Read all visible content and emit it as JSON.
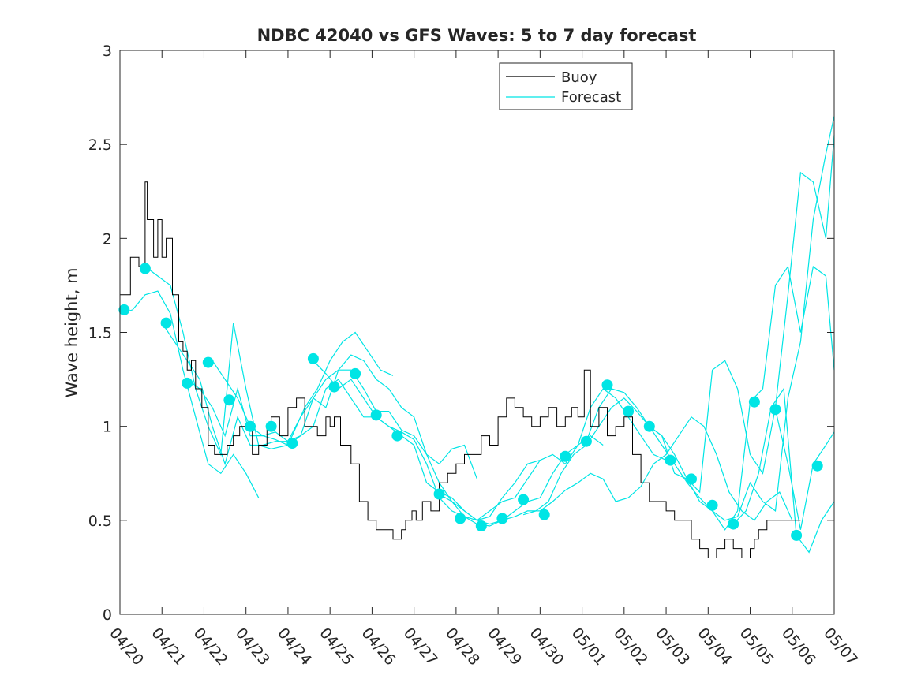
{
  "chart_data": {
    "type": "line",
    "title": "NDBC 42040 vs GFS Waves: 5 to 7 day forecast",
    "xlabel": "",
    "ylabel": "Wave height, m",
    "xlim": [
      0,
      17
    ],
    "ylim": [
      0,
      3
    ],
    "xticks": [
      "04/20",
      "04/21",
      "04/22",
      "04/23",
      "04/24",
      "04/25",
      "04/26",
      "04/27",
      "04/28",
      "04/29",
      "04/30",
      "05/01",
      "05/02",
      "05/03",
      "05/04",
      "05/05",
      "05/06",
      "05/07"
    ],
    "yticks": [
      "0",
      "0.5",
      "1",
      "1.5",
      "2",
      "2.5",
      "3"
    ],
    "grid": false,
    "legend_position": "top-center",
    "colors": {
      "buoy": "#000000",
      "forecast": "#00e5e5"
    },
    "series": [
      {
        "name": "Buoy",
        "style": "stair-line",
        "x": [
          0.0,
          0.25,
          0.45,
          0.6,
          0.65,
          0.8,
          0.9,
          1.0,
          1.1,
          1.25,
          1.4,
          1.5,
          1.6,
          1.7,
          1.8,
          1.95,
          2.1,
          2.25,
          2.4,
          2.55,
          2.7,
          2.85,
          3.0,
          3.15,
          3.3,
          3.5,
          3.6,
          3.8,
          4.0,
          4.2,
          4.4,
          4.55,
          4.7,
          4.9,
          5.0,
          5.1,
          5.25,
          5.5,
          5.7,
          5.9,
          6.1,
          6.3,
          6.5,
          6.7,
          6.8,
          6.95,
          7.05,
          7.2,
          7.4,
          7.6,
          7.8,
          8.0,
          8.2,
          8.4,
          8.6,
          8.8,
          9.0,
          9.2,
          9.4,
          9.6,
          9.8,
          10.0,
          10.2,
          10.4,
          10.6,
          10.75,
          10.9,
          11.05,
          11.2,
          11.4,
          11.6,
          11.8,
          12.0,
          12.2,
          12.4,
          12.6,
          12.8,
          13.0,
          13.2,
          13.4,
          13.6,
          13.8,
          14.0,
          14.2,
          14.4,
          14.6,
          14.8,
          15.0,
          15.1,
          15.2,
          15.4,
          15.6,
          15.75,
          15.9,
          16.05,
          16.2
        ],
        "y": [
          1.7,
          1.9,
          1.85,
          2.3,
          2.1,
          1.9,
          2.1,
          1.9,
          2.0,
          1.7,
          1.45,
          1.4,
          1.3,
          1.35,
          1.2,
          1.1,
          0.9,
          0.85,
          0.85,
          0.9,
          0.95,
          1.0,
          1.0,
          0.85,
          0.9,
          1.0,
          1.05,
          0.95,
          1.1,
          1.15,
          1.0,
          1.0,
          0.95,
          1.05,
          1.0,
          1.05,
          0.9,
          0.8,
          0.6,
          0.5,
          0.45,
          0.45,
          0.4,
          0.45,
          0.5,
          0.55,
          0.5,
          0.6,
          0.55,
          0.7,
          0.75,
          0.8,
          0.85,
          0.85,
          0.95,
          0.9,
          1.05,
          1.15,
          1.1,
          1.05,
          1.0,
          1.05,
          1.1,
          1.0,
          1.05,
          1.1,
          1.05,
          1.3,
          1.0,
          1.1,
          0.95,
          1.0,
          1.05,
          0.85,
          0.7,
          0.6,
          0.6,
          0.55,
          0.5,
          0.5,
          0.4,
          0.35,
          0.3,
          0.35,
          0.4,
          0.35,
          0.3,
          0.35,
          0.4,
          0.45,
          0.5,
          0.5,
          0.5,
          0.5,
          0.5,
          0.5
        ]
      },
      {
        "name": "Forecast",
        "runs": [
          {
            "x": [
              0.0,
              0.3,
              0.6,
              0.9,
              1.2,
              1.5,
              1.8,
              2.1,
              2.4,
              2.7,
              3.0,
              3.3
            ],
            "y": [
              1.6,
              1.62,
              1.7,
              1.72,
              1.6,
              1.3,
              1.05,
              0.8,
              0.75,
              0.85,
              0.75,
              0.62
            ]
          },
          {
            "x": [
              0.6,
              0.9,
              1.2,
              1.5,
              1.8,
              2.1,
              2.4,
              2.7,
              3.0,
              3.3,
              3.6,
              4.0,
              4.4,
              4.7,
              5.0,
              5.3,
              5.6,
              5.9,
              6.2,
              6.5
            ],
            "y": [
              1.85,
              1.8,
              1.75,
              1.5,
              1.2,
              1.0,
              0.85,
              1.55,
              1.2,
              0.9,
              0.88,
              0.9,
              1.1,
              1.2,
              1.35,
              1.45,
              1.5,
              1.4,
              1.3,
              1.27
            ]
          },
          {
            "x": [
              1.0,
              1.3,
              1.6,
              1.9,
              2.2,
              2.5,
              2.8,
              3.1,
              3.4,
              3.7,
              4.0,
              4.3,
              4.6,
              4.9,
              5.2,
              5.5,
              5.8,
              6.1,
              6.4,
              6.7,
              7.0,
              7.3,
              7.6,
              7.9,
              8.2,
              8.5
            ],
            "y": [
              1.55,
              1.45,
              1.35,
              1.25,
              1.0,
              0.8,
              1.05,
              0.9,
              0.9,
              0.92,
              0.92,
              1.05,
              1.15,
              1.25,
              1.3,
              1.38,
              1.35,
              1.25,
              1.2,
              1.1,
              1.05,
              0.85,
              0.8,
              0.88,
              0.9,
              0.72
            ]
          },
          {
            "x": [
              1.6,
              1.9,
              2.2,
              2.5,
              2.8,
              3.1,
              3.4,
              3.7,
              4.0,
              4.3,
              4.6,
              4.9,
              5.2,
              5.5,
              5.8,
              6.1,
              6.4,
              6.7,
              7.0,
              7.3,
              7.6,
              7.9,
              8.2,
              8.5,
              8.8,
              9.1,
              9.4,
              9.7,
              10.0
            ],
            "y": [
              1.25,
              1.2,
              1.1,
              0.95,
              1.2,
              0.95,
              0.95,
              0.93,
              0.9,
              0.95,
              1.15,
              1.1,
              1.3,
              1.3,
              1.2,
              1.08,
              1.08,
              0.98,
              0.95,
              0.85,
              0.7,
              0.6,
              0.55,
              0.5,
              0.52,
              0.62,
              0.7,
              0.8,
              0.82
            ]
          },
          {
            "x": [
              2.2,
              2.5,
              2.8,
              3.1,
              3.4,
              3.7,
              4.0,
              4.3,
              4.6,
              4.9,
              5.2,
              5.5,
              5.8,
              6.1,
              6.4,
              6.7,
              7.0,
              7.3,
              7.6,
              7.9,
              8.2,
              8.5,
              8.8,
              9.1,
              9.4,
              9.7,
              10.0,
              10.3,
              10.6,
              10.9,
              11.2,
              11.5
            ],
            "y": [
              1.35,
              1.25,
              1.15,
              1.0,
              0.95,
              0.97,
              0.92,
              0.95,
              1.0,
              1.2,
              1.25,
              1.15,
              1.05,
              1.05,
              1.0,
              0.97,
              0.93,
              0.8,
              0.62,
              0.55,
              0.52,
              0.5,
              0.55,
              0.6,
              0.62,
              0.72,
              0.82,
              0.85,
              0.8,
              0.9,
              0.95,
              0.9
            ]
          },
          {
            "x": [
              4.6,
              4.9,
              5.2,
              5.5,
              5.8,
              6.1,
              6.4,
              6.7,
              7.0,
              7.3,
              7.6,
              7.9,
              8.2,
              8.5,
              8.8,
              9.1,
              9.4,
              9.7,
              10.0,
              10.3,
              10.6,
              10.9,
              11.2,
              11.5,
              11.8,
              12.1,
              12.4,
              12.7,
              13.0
            ],
            "y": [
              1.35,
              1.28,
              1.2,
              1.25,
              1.15,
              1.05,
              1.0,
              0.95,
              0.9,
              0.7,
              0.65,
              0.62,
              0.55,
              0.5,
              0.48,
              0.5,
              0.55,
              0.6,
              0.62,
              0.75,
              0.85,
              0.9,
              1.1,
              1.2,
              1.15,
              1.05,
              0.95,
              0.85,
              0.82
            ]
          },
          {
            "x": [
              7.6,
              7.9,
              8.2,
              8.5,
              8.8,
              9.1,
              9.4,
              9.7,
              10.0,
              10.3,
              10.6,
              10.9,
              11.2,
              11.5,
              11.8,
              12.1,
              12.4,
              12.7,
              13.0,
              13.3,
              13.6,
              13.9,
              14.2,
              14.5,
              14.8,
              15.1,
              15.4,
              15.7,
              16.0
            ],
            "y": [
              0.64,
              0.6,
              0.52,
              0.48,
              0.47,
              0.5,
              0.52,
              0.55,
              0.55,
              0.6,
              0.66,
              0.7,
              0.75,
              0.72,
              0.6,
              0.62,
              0.68,
              0.8,
              0.85,
              0.95,
              1.05,
              1.0,
              0.85,
              0.65,
              0.55,
              0.5,
              0.6,
              0.65,
              0.5
            ]
          },
          {
            "x": [
              9.6,
              9.9,
              10.2,
              10.5,
              10.8,
              11.1,
              11.4,
              11.7,
              12.0,
              12.3,
              12.6,
              12.9,
              13.2,
              13.5,
              13.8,
              14.1,
              14.4,
              14.7,
              15.0,
              15.3,
              15.6,
              15.9,
              16.2,
              16.5,
              16.8,
              17.0
            ],
            "y": [
              0.53,
              0.55,
              0.6,
              0.75,
              0.85,
              0.9,
              1.0,
              1.1,
              1.15,
              1.08,
              1.0,
              0.95,
              0.75,
              0.72,
              0.6,
              0.55,
              0.5,
              0.52,
              0.7,
              0.6,
              0.55,
              1.15,
              1.45,
              2.1,
              2.45,
              2.65
            ]
          },
          {
            "x": [
              11.1,
              11.4,
              11.7,
              12.0,
              12.3,
              12.6,
              12.9,
              13.2,
              13.5,
              13.8,
              14.1,
              14.4,
              14.7,
              15.0,
              15.3,
              15.6,
              15.9,
              16.2,
              16.5,
              16.8,
              17.0
            ],
            "y": [
              0.92,
              1.1,
              1.2,
              1.18,
              1.1,
              1.0,
              0.9,
              0.8,
              0.7,
              0.62,
              0.55,
              0.45,
              0.55,
              1.13,
              1.2,
              1.75,
              1.85,
              1.5,
              1.85,
              1.8,
              1.3
            ]
          },
          {
            "x": [
              12.6,
              12.9,
              13.2,
              13.5,
              13.8,
              14.1,
              14.4,
              14.7,
              15.0,
              15.3,
              15.6,
              15.9,
              16.2,
              16.5,
              16.8,
              17.0
            ],
            "y": [
              1.0,
              0.95,
              0.85,
              0.72,
              0.65,
              1.3,
              1.35,
              1.2,
              0.85,
              0.75,
              1.1,
              1.7,
              2.35,
              2.3,
              2.0,
              2.55
            ]
          },
          {
            "x": [
              14.6,
              14.9,
              15.2,
              15.5,
              15.8,
              16.1,
              16.4,
              16.7,
              17.0
            ],
            "y": [
              0.48,
              0.55,
              0.75,
              1.1,
              1.2,
              0.42,
              0.33,
              0.5,
              0.6
            ]
          },
          {
            "x": [
              15.6,
              15.9,
              16.2,
              16.5,
              16.8,
              17.0
            ],
            "y": [
              1.09,
              0.8,
              0.45,
              0.8,
              0.9,
              0.97
            ]
          }
        ]
      }
    ],
    "points": {
      "x": [
        0.1,
        0.6,
        1.1,
        1.6,
        2.1,
        2.6,
        3.1,
        3.6,
        4.1,
        4.6,
        5.1,
        5.6,
        6.1,
        6.6,
        7.6,
        8.1,
        8.6,
        9.1,
        9.6,
        10.1,
        10.6,
        11.1,
        11.6,
        12.1,
        12.6,
        13.1,
        13.6,
        14.1,
        14.6,
        15.1,
        15.6,
        16.1,
        16.6
      ],
      "y": [
        1.62,
        1.84,
        1.55,
        1.23,
        1.34,
        1.14,
        1.0,
        1.0,
        0.91,
        1.36,
        1.21,
        1.28,
        1.06,
        0.95,
        0.64,
        0.51,
        0.47,
        0.51,
        0.61,
        0.53,
        0.84,
        0.92,
        1.22,
        1.08,
        1.0,
        0.82,
        0.72,
        0.58,
        0.48,
        1.13,
        1.09,
        0.42,
        0.79
      ]
    }
  }
}
